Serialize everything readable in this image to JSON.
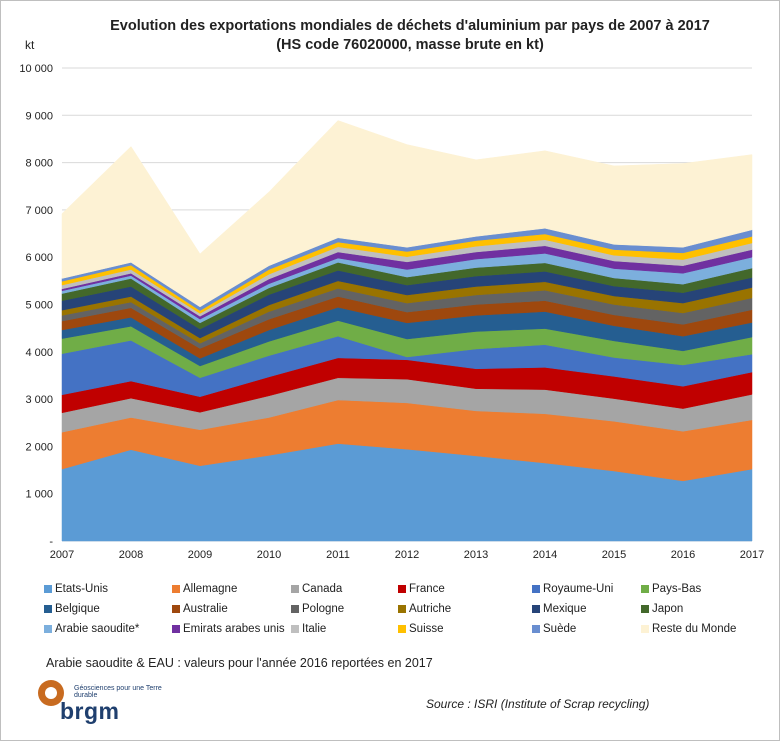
{
  "title_line1": "Evolution des exportations mondiales de déchets d'aluminium par pays de 2007 à 2017",
  "title_line2": "(HS code 76020000, masse brute en kt)",
  "unit_label": "kt",
  "note": "Arabie saoudite & EAU : valeurs pour l'année 2016 reportées en 2017",
  "source": "Source : ISRI (Institute of Scrap recycling)",
  "logo": {
    "tagline": "Géosciences pour une Terre durable",
    "word": "brgm"
  },
  "chart_data": {
    "type": "area",
    "stacked": true,
    "title": "Evolution des exportations mondiales de déchets d'aluminium par pays de 2007 à 2017 (HS code 76020000, masse brute en kt)",
    "ylabel": "kt",
    "xlabel": "",
    "ylim": [
      0,
      10000
    ],
    "yticks": [
      0,
      1000,
      2000,
      3000,
      4000,
      5000,
      6000,
      7000,
      8000,
      9000,
      10000
    ],
    "ytick_labels": [
      "-",
      "1 000",
      "2 000",
      "3 000",
      "4 000",
      "5 000",
      "6 000",
      "7 000",
      "8 000",
      "9 000",
      "10 000"
    ],
    "grid": true,
    "legend_position": "bottom",
    "x": [
      "2007",
      "2008",
      "2009",
      "2010",
      "2011",
      "2012",
      "2013",
      "2014",
      "2015",
      "2016",
      "2017"
    ],
    "series": [
      {
        "name": "Etats-Unis",
        "color": "#5b9bd5",
        "values": [
          1520,
          1930,
          1590,
          1810,
          2060,
          1940,
          1800,
          1650,
          1480,
          1270,
          1520
        ]
      },
      {
        "name": "Allemagne",
        "color": "#ed7d31",
        "values": [
          780,
          680,
          760,
          800,
          920,
          980,
          950,
          1040,
          1050,
          1050,
          1040
        ]
      },
      {
        "name": "Canada",
        "color": "#a5a5a5",
        "values": [
          410,
          410,
          370,
          460,
          470,
          500,
          470,
          510,
          480,
          480,
          540
        ]
      },
      {
        "name": "France",
        "color": "#c00000",
        "values": [
          380,
          360,
          330,
          400,
          420,
          410,
          420,
          470,
          470,
          470,
          470
        ]
      },
      {
        "name": "Royaume-Uni",
        "color": "#4472c4",
        "values": [
          870,
          860,
          400,
          450,
          460,
          60,
          420,
          480,
          400,
          450,
          380
        ]
      },
      {
        "name": "Pays-Bas",
        "color": "#70ad47",
        "values": [
          320,
          300,
          250,
          300,
          330,
          380,
          370,
          340,
          350,
          300,
          360
        ]
      },
      {
        "name": "Belgique",
        "color": "#255e91",
        "values": [
          180,
          190,
          160,
          240,
          280,
          340,
          340,
          360,
          320,
          310,
          310
        ]
      },
      {
        "name": "Australie",
        "color": "#9e480e",
        "values": [
          190,
          200,
          210,
          230,
          230,
          230,
          230,
          230,
          230,
          250,
          270
        ]
      },
      {
        "name": "Pologne",
        "color": "#636363",
        "values": [
          120,
          120,
          110,
          160,
          170,
          190,
          200,
          220,
          220,
          240,
          250
        ]
      },
      {
        "name": "Autriche",
        "color": "#997300",
        "values": [
          110,
          120,
          110,
          140,
          160,
          170,
          180,
          180,
          180,
          210,
          220
        ]
      },
      {
        "name": "Mexique",
        "color": "#264478",
        "values": [
          200,
          210,
          190,
          220,
          220,
          210,
          220,
          220,
          210,
          220,
          210
        ]
      },
      {
        "name": "Japon",
        "color": "#43682b",
        "values": [
          150,
          170,
          130,
          140,
          170,
          170,
          180,
          180,
          170,
          180,
          200
        ]
      },
      {
        "name": "Arabie saoudite*",
        "color": "#7cafdd",
        "values": [
          60,
          60,
          80,
          90,
          90,
          160,
          180,
          200,
          200,
          230,
          230
        ]
      },
      {
        "name": "Emirats arabes unis",
        "color": "#7030a0",
        "values": [
          40,
          50,
          60,
          100,
          130,
          160,
          150,
          160,
          160,
          160,
          160
        ]
      },
      {
        "name": "Italie",
        "color": "#bfbfbf",
        "values": [
          80,
          80,
          60,
          100,
          110,
          110,
          120,
          130,
          120,
          130,
          140
        ]
      },
      {
        "name": "Suisse",
        "color": "#ffc000",
        "values": [
          80,
          90,
          60,
          100,
          100,
          110,
          120,
          120,
          120,
          140,
          140
        ]
      },
      {
        "name": "Suède",
        "color": "#698ed0",
        "values": [
          60,
          60,
          80,
          80,
          90,
          90,
          90,
          120,
          110,
          120,
          140
        ]
      },
      {
        "name": "Reste du Monde",
        "color": "#fdf2d4",
        "values": [
          1370,
          2450,
          1120,
          1560,
          2480,
          2170,
          1620,
          1640,
          1660,
          1770,
          1590
        ]
      }
    ]
  }
}
